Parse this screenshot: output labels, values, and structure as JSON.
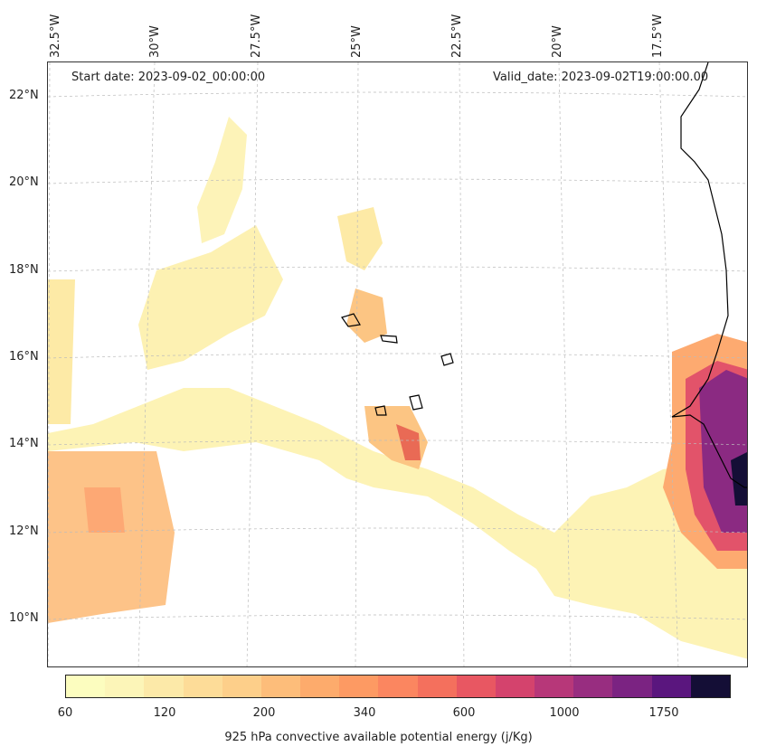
{
  "header": {
    "start_date": "Start date: 2023-09-02_00:00:00",
    "valid_date": "Valid_date: 2023-09-02T19:00:00.00"
  },
  "map": {
    "longitude_labels": [
      "32.5°W",
      "30°W",
      "27.5°W",
      "25°W",
      "22.5°W",
      "20°W",
      "17.5°W"
    ],
    "latitude_labels": [
      "22°N",
      "20°N",
      "18°N",
      "16°N",
      "14°N",
      "12°N",
      "10°N"
    ],
    "gridlines": "dashed",
    "field": "925 hPa convective available potential energy",
    "coastlines": "black outline"
  },
  "colorbar": {
    "label": "925 hPa convective available potential energy (j/Kg)",
    "tick_labels": [
      "60",
      "120",
      "200",
      "340",
      "600",
      "1000",
      "1750"
    ],
    "colors": [
      "#fcfdbf",
      "#fcf5b8",
      "#fce9a8",
      "#fddc98",
      "#fdcf8a",
      "#fdbd7a",
      "#fdab6c",
      "#fd9a63",
      "#fb8660",
      "#f4705d",
      "#e85762",
      "#d4436d",
      "#b73779",
      "#982d80",
      "#7b2382",
      "#5a167e",
      "#140e36"
    ]
  }
}
